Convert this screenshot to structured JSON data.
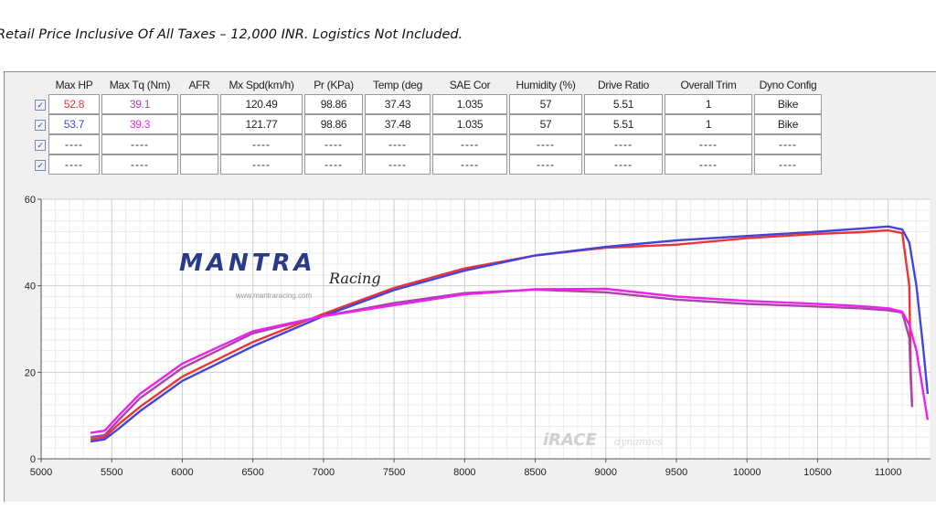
{
  "caption": "Retail Price Inclusive Of All Taxes – 12,000 INR. Logistics Not Included.",
  "colors": {
    "hp_run1": "#ee3333",
    "hp_run2": "#4444dd",
    "tq_run1": "#aa44aa",
    "tq_run2": "#ee22ee",
    "grid": "#cfcfcf",
    "plot_bg": "#ffffff",
    "frame_bg": "#f0f0f0"
  },
  "table": {
    "headers": [
      "Max HP",
      "Max Tq (Nm)",
      "AFR",
      "Mx Spd(km/h)",
      "Pr (KPa)",
      "Temp (deg",
      "SAE Cor",
      "Humidity (%)",
      "Drive Ratio",
      "Overall Trim",
      "Dyno Config"
    ],
    "rows": [
      {
        "checked": true,
        "cells": [
          "52.8",
          "39.1",
          "",
          "120.49",
          "98.86",
          "37.43",
          "1.035",
          "57",
          "5.51",
          "1",
          "Bike"
        ]
      },
      {
        "checked": true,
        "cells": [
          "53.7",
          "39.3",
          "",
          "121.77",
          "98.86",
          "37.48",
          "1.035",
          "57",
          "5.51",
          "1",
          "Bike"
        ]
      },
      {
        "checked": true,
        "cells": [
          "----",
          "----",
          "",
          "----",
          "----",
          "----",
          "----",
          "----",
          "----",
          "----",
          "----"
        ]
      },
      {
        "checked": true,
        "cells": [
          "----",
          "----",
          "",
          "----",
          "----",
          "----",
          "----",
          "----",
          "----",
          "----",
          "----"
        ]
      }
    ]
  },
  "watermarks": {
    "logo": "MANTRA",
    "logo_script": "Racing",
    "url": "www.mantraracing.com",
    "brand": "iRACE",
    "brand_script": "dynamics"
  },
  "chart_data": {
    "type": "line",
    "xlim": [
      5000,
      11300
    ],
    "ylim": [
      0,
      60
    ],
    "x_ticks": [
      5000,
      5500,
      6000,
      6500,
      7000,
      7500,
      8000,
      8500,
      9000,
      9500,
      10000,
      10500,
      11000
    ],
    "y_ticks": [
      0,
      20,
      40,
      60
    ],
    "grid": true,
    "series": [
      {
        "name_ref": "hp_run1",
        "color": "#ee3333",
        "x": [
          5350,
          5450,
          5550,
          5700,
          6000,
          6500,
          7000,
          7500,
          8000,
          8500,
          9000,
          9500,
          10000,
          10500,
          10800,
          11000,
          11100,
          11150,
          11160,
          11170
        ],
        "y": [
          4.5,
          5,
          8,
          12,
          19,
          27,
          33.5,
          39.5,
          44,
          47,
          48.8,
          49.5,
          51,
          52,
          52.4,
          52.8,
          52.2,
          40,
          20,
          12
        ]
      },
      {
        "name_ref": "hp_run2",
        "color": "#4444dd",
        "x": [
          5350,
          5450,
          5550,
          5700,
          6000,
          6500,
          7000,
          7500,
          8000,
          8500,
          9000,
          9500,
          10000,
          10500,
          10800,
          11000,
          11100,
          11150,
          11200,
          11250,
          11280
        ],
        "y": [
          4,
          4.5,
          7,
          11,
          18,
          26,
          33,
          39,
          43.5,
          47,
          49,
          50.5,
          51.5,
          52.5,
          53.2,
          53.7,
          53,
          50,
          40,
          25,
          15
        ]
      },
      {
        "name_ref": "tq_run1",
        "color": "#aa44aa",
        "x": [
          5350,
          5450,
          5550,
          5700,
          6000,
          6500,
          7000,
          7500,
          8000,
          8500,
          9000,
          9500,
          10000,
          10500,
          10800,
          11000,
          11100,
          11150,
          11160,
          11170
        ],
        "y": [
          5,
          5.5,
          9,
          14,
          21,
          29,
          33,
          36,
          38.3,
          39.1,
          38.5,
          36.8,
          35.8,
          35.2,
          34.8,
          34.3,
          33.8,
          28,
          18,
          12
        ]
      },
      {
        "name_ref": "tq_run2",
        "color": "#ee22ee",
        "x": [
          5350,
          5450,
          5550,
          5700,
          6000,
          6500,
          7000,
          7500,
          8000,
          8500,
          9000,
          9500,
          10000,
          10500,
          10800,
          11000,
          11100,
          11150,
          11200,
          11250,
          11280
        ],
        "y": [
          6,
          6.5,
          10,
          15,
          22,
          29.5,
          33,
          35.5,
          38,
          39.2,
          39.3,
          37.5,
          36.5,
          35.8,
          35.3,
          34.8,
          34,
          31,
          25,
          15,
          9
        ]
      }
    ]
  }
}
